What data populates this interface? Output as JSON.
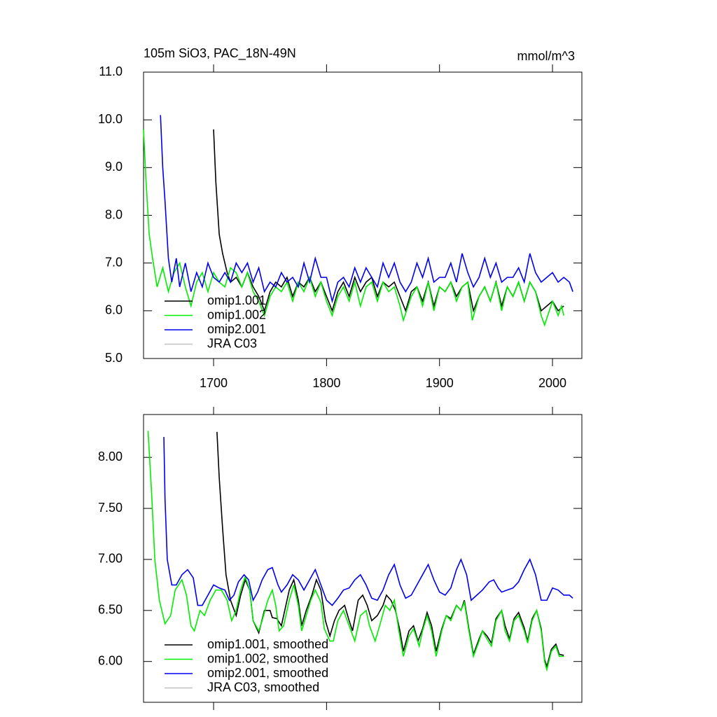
{
  "chart_data": [
    {
      "type": "line",
      "title": "105m SiO3, PAC_18N-49N",
      "units": "mmol/m^3",
      "xlim": [
        1638,
        2026
      ],
      "xticks": [
        1700,
        1800,
        1900,
        2000
      ],
      "ylim": [
        5,
        11
      ],
      "yticks": [
        {
          "value": 5,
          "label": "5.0"
        },
        {
          "value": 6,
          "label": "6.0"
        },
        {
          "value": 7,
          "label": "7.0"
        },
        {
          "value": 8,
          "label": "8.0"
        },
        {
          "value": 9,
          "label": "9.0"
        },
        {
          "value": 10,
          "label": "10.0"
        },
        {
          "value": 11,
          "label": "11.0"
        }
      ],
      "legend": "lower left",
      "series": [
        {
          "name": "omip1.001",
          "color": "#000000",
          "x": [
            1700,
            1702,
            1705,
            1708,
            1712,
            1715,
            1720,
            1725,
            1730,
            1735,
            1740,
            1745,
            1750,
            1755,
            1760,
            1765,
            1770,
            1775,
            1780,
            1785,
            1790,
            1795,
            1800,
            1805,
            1810,
            1815,
            1820,
            1825,
            1830,
            1835,
            1840,
            1845,
            1850,
            1855,
            1860,
            1865,
            1870,
            1875,
            1880,
            1885,
            1890,
            1895,
            1900,
            1905,
            1910,
            1915,
            1920,
            1925,
            1930,
            1935,
            1940,
            1945,
            1950,
            1955,
            1960,
            1965,
            1970,
            1975,
            1980,
            1985,
            1990,
            1995,
            2000,
            2005,
            2010
          ],
          "values": [
            9.8,
            8.7,
            7.6,
            7.2,
            6.8,
            6.6,
            6.7,
            6.5,
            6.8,
            6.5,
            6.3,
            6.0,
            6.4,
            6.6,
            6.5,
            6.7,
            6.3,
            6.6,
            6.5,
            6.7,
            6.4,
            6.6,
            6.3,
            6.0,
            6.4,
            6.6,
            6.3,
            6.7,
            6.4,
            6.6,
            6.7,
            6.3,
            6.6,
            6.5,
            6.6,
            6.3,
            6.0,
            6.4,
            6.5,
            6.2,
            6.6,
            6.1,
            6.5,
            6.4,
            6.6,
            6.3,
            6.5,
            6.6,
            6.0,
            6.3,
            6.5,
            6.2,
            6.6,
            6.1,
            6.5,
            6.3,
            6.6,
            6.2,
            6.6,
            6.4,
            6.0,
            6.1,
            6.2,
            6.0,
            6.1
          ]
        },
        {
          "name": "omip1.002",
          "color": "#00ee00",
          "x": [
            1638,
            1640,
            1643,
            1646,
            1650,
            1655,
            1660,
            1665,
            1670,
            1675,
            1680,
            1685,
            1690,
            1695,
            1700,
            1705,
            1710,
            1715,
            1720,
            1725,
            1730,
            1735,
            1740,
            1745,
            1750,
            1755,
            1760,
            1765,
            1770,
            1775,
            1780,
            1785,
            1790,
            1795,
            1800,
            1805,
            1810,
            1815,
            1820,
            1825,
            1830,
            1835,
            1840,
            1845,
            1850,
            1855,
            1860,
            1865,
            1868,
            1875,
            1880,
            1885,
            1890,
            1895,
            1900,
            1905,
            1910,
            1915,
            1920,
            1925,
            1929,
            1935,
            1940,
            1945,
            1950,
            1955,
            1960,
            1965,
            1970,
            1975,
            1980,
            1985,
            1990,
            1993,
            2000,
            2005,
            2008,
            2010
          ],
          "values": [
            9.8,
            8.8,
            7.6,
            7.1,
            6.5,
            6.9,
            6.4,
            6.8,
            7.0,
            6.5,
            6.1,
            6.6,
            6.8,
            6.4,
            6.8,
            6.6,
            6.5,
            6.9,
            6.8,
            6.5,
            6.8,
            6.4,
            6.2,
            5.9,
            6.3,
            6.5,
            6.4,
            6.6,
            6.2,
            6.6,
            6.4,
            6.7,
            6.3,
            6.6,
            6.2,
            5.9,
            6.3,
            6.5,
            6.2,
            6.6,
            6.1,
            6.5,
            6.6,
            6.2,
            6.6,
            6.4,
            6.5,
            6.1,
            5.8,
            6.3,
            6.5,
            6.1,
            6.6,
            6.0,
            6.5,
            6.4,
            6.6,
            6.2,
            6.5,
            6.6,
            5.8,
            6.3,
            6.5,
            6.2,
            6.6,
            6.0,
            6.5,
            6.3,
            6.6,
            6.2,
            6.6,
            6.4,
            5.9,
            5.7,
            6.2,
            5.9,
            6.1,
            5.9
          ]
        },
        {
          "name": "omip2.001",
          "color": "#0000ee",
          "x": [
            1653,
            1655,
            1657,
            1660,
            1663,
            1667,
            1670,
            1675,
            1680,
            1685,
            1690,
            1695,
            1700,
            1705,
            1710,
            1715,
            1720,
            1725,
            1730,
            1735,
            1740,
            1745,
            1750,
            1755,
            1760,
            1765,
            1770,
            1775,
            1780,
            1785,
            1790,
            1795,
            1800,
            1805,
            1810,
            1815,
            1820,
            1825,
            1830,
            1835,
            1840,
            1845,
            1850,
            1855,
            1860,
            1865,
            1870,
            1875,
            1880,
            1885,
            1890,
            1895,
            1900,
            1905,
            1910,
            1915,
            1920,
            1925,
            1930,
            1935,
            1940,
            1945,
            1950,
            1955,
            1960,
            1965,
            1970,
            1975,
            1980,
            1985,
            1990,
            1995,
            2000,
            2005,
            2010,
            2015,
            2018
          ],
          "values": [
            10.1,
            9.0,
            8.3,
            7.1,
            6.6,
            7.1,
            6.5,
            7.0,
            6.4,
            6.8,
            6.5,
            7.0,
            6.7,
            6.6,
            6.8,
            6.6,
            7.0,
            6.8,
            7.0,
            6.6,
            6.9,
            6.4,
            6.6,
            6.5,
            6.8,
            6.6,
            6.7,
            6.5,
            7.0,
            6.6,
            7.1,
            6.7,
            6.7,
            6.2,
            6.6,
            6.7,
            6.5,
            6.9,
            6.6,
            6.9,
            6.7,
            6.5,
            7.0,
            6.7,
            7.0,
            6.6,
            6.4,
            6.6,
            7.0,
            6.7,
            7.1,
            6.6,
            6.7,
            6.7,
            7.0,
            6.6,
            7.2,
            6.8,
            6.5,
            6.7,
            7.1,
            6.7,
            7.0,
            6.6,
            6.7,
            6.7,
            6.9,
            6.6,
            7.2,
            6.8,
            6.6,
            6.7,
            6.8,
            6.6,
            6.7,
            6.6,
            6.4
          ]
        },
        {
          "name": "JRA C03",
          "color": "#c0c0c0",
          "x": [],
          "values": []
        }
      ]
    },
    {
      "type": "line",
      "xlim": [
        1638,
        2026
      ],
      "ylim": [
        5.6,
        8.42
      ],
      "yticks": [
        {
          "value": 6,
          "label": "6.00"
        },
        {
          "value": 6.5,
          "label": "6.50"
        },
        {
          "value": 7,
          "label": "7.00"
        },
        {
          "value": 7.5,
          "label": "7.50"
        },
        {
          "value": 8,
          "label": "8.00"
        }
      ],
      "legend": "lower left",
      "series": [
        {
          "name": "omip1.001, smoothed",
          "color": "#000000",
          "x": [
            1703,
            1705,
            1708,
            1711,
            1715,
            1720,
            1724,
            1728,
            1732,
            1735,
            1740,
            1745,
            1750,
            1752,
            1756,
            1760,
            1763,
            1767,
            1771,
            1775,
            1778,
            1782,
            1787,
            1791,
            1795,
            1799,
            1803,
            1807,
            1811,
            1816,
            1820,
            1823,
            1828,
            1832,
            1836,
            1840,
            1845,
            1850,
            1853,
            1857,
            1861,
            1865,
            1868,
            1873,
            1877,
            1881,
            1885,
            1889,
            1893,
            1897,
            1902,
            1906,
            1910,
            1915,
            1919,
            1922,
            1926,
            1930,
            1935,
            1938,
            1942,
            1946,
            1950,
            1955,
            1958,
            1962,
            1966,
            1970,
            1975,
            1978,
            1982,
            1986,
            1990,
            1993,
            1995,
            1999,
            2003,
            2006,
            2010
          ],
          "values": [
            8.25,
            7.8,
            7.3,
            6.85,
            6.6,
            6.45,
            6.65,
            6.8,
            6.7,
            6.4,
            6.28,
            6.5,
            6.5,
            6.43,
            6.42,
            6.35,
            6.5,
            6.7,
            6.8,
            6.6,
            6.35,
            6.5,
            6.65,
            6.8,
            6.7,
            6.4,
            6.25,
            6.4,
            6.5,
            6.55,
            6.4,
            6.3,
            6.6,
            6.65,
            6.55,
            6.4,
            6.45,
            6.55,
            6.65,
            6.6,
            6.5,
            6.3,
            6.1,
            6.3,
            6.35,
            6.2,
            6.32,
            6.48,
            6.35,
            6.1,
            6.32,
            6.45,
            6.42,
            6.55,
            6.5,
            6.6,
            6.32,
            6.07,
            6.22,
            6.3,
            6.25,
            6.18,
            6.42,
            6.5,
            6.35,
            6.22,
            6.42,
            6.48,
            6.33,
            6.2,
            6.42,
            6.5,
            6.32,
            6.02,
            5.95,
            6.12,
            6.17,
            6.07,
            6.06
          ]
        },
        {
          "name": "omip1.002, smoothed",
          "color": "#00ee00",
          "x": [
            1642,
            1645,
            1648,
            1652,
            1657,
            1662,
            1666,
            1672,
            1676,
            1680,
            1683,
            1688,
            1692,
            1697,
            1702,
            1707,
            1712,
            1716,
            1720,
            1724,
            1728,
            1732,
            1735,
            1740,
            1743,
            1748,
            1752,
            1755,
            1758,
            1762,
            1767,
            1771,
            1775,
            1778,
            1782,
            1786,
            1790,
            1795,
            1798,
            1803,
            1806,
            1810,
            1815,
            1820,
            1825,
            1830,
            1835,
            1838,
            1843,
            1847,
            1852,
            1856,
            1860,
            1864,
            1868,
            1873,
            1877,
            1882,
            1885,
            1889,
            1893,
            1897,
            1902,
            1906,
            1910,
            1915,
            1919,
            1922,
            1926,
            1930,
            1935,
            1938,
            1942,
            1946,
            1950,
            1955,
            1958,
            1962,
            1966,
            1970,
            1975,
            1978,
            1982,
            1986,
            1990,
            1993,
            1995,
            1999,
            2003,
            2006,
            2010
          ],
          "values": [
            8.26,
            7.68,
            7.0,
            6.6,
            6.37,
            6.45,
            6.7,
            6.8,
            6.65,
            6.35,
            6.3,
            6.5,
            6.45,
            6.6,
            6.7,
            6.7,
            6.6,
            6.4,
            6.5,
            6.7,
            6.83,
            6.7,
            6.4,
            6.3,
            6.4,
            6.6,
            6.7,
            6.55,
            6.3,
            6.35,
            6.6,
            6.75,
            6.55,
            6.3,
            6.45,
            6.6,
            6.7,
            6.58,
            6.32,
            6.2,
            6.2,
            6.4,
            6.5,
            6.35,
            6.2,
            6.45,
            6.5,
            6.35,
            6.2,
            6.35,
            6.55,
            6.5,
            6.6,
            6.3,
            6.05,
            6.25,
            6.32,
            6.15,
            6.3,
            6.45,
            6.3,
            6.05,
            6.3,
            6.45,
            6.4,
            6.55,
            6.5,
            6.58,
            6.3,
            6.05,
            6.2,
            6.3,
            6.22,
            6.15,
            6.4,
            6.5,
            6.3,
            6.2,
            6.4,
            6.45,
            6.3,
            6.18,
            6.4,
            6.5,
            6.3,
            6.0,
            5.92,
            6.1,
            6.15,
            6.05,
            6.05
          ]
        },
        {
          "name": "omip2.001, smoothed",
          "color": "#0000ee",
          "x": [
            1656,
            1657,
            1659,
            1663,
            1667,
            1672,
            1677,
            1682,
            1686,
            1690,
            1695,
            1700,
            1705,
            1710,
            1714,
            1718,
            1722,
            1727,
            1731,
            1735,
            1739,
            1743,
            1748,
            1752,
            1757,
            1760,
            1765,
            1770,
            1775,
            1780,
            1785,
            1790,
            1795,
            1800,
            1805,
            1810,
            1815,
            1820,
            1825,
            1830,
            1835,
            1840,
            1845,
            1850,
            1855,
            1860,
            1865,
            1870,
            1875,
            1880,
            1885,
            1890,
            1895,
            1900,
            1905,
            1910,
            1915,
            1919,
            1924,
            1928,
            1933,
            1938,
            1944,
            1948,
            1952,
            1955,
            1960,
            1965,
            1970,
            1975,
            1980,
            1985,
            1990,
            1995,
            2000,
            2005,
            2010,
            2015,
            2018
          ],
          "values": [
            8.2,
            7.6,
            7.0,
            6.75,
            6.75,
            6.85,
            6.9,
            6.82,
            6.55,
            6.55,
            6.65,
            6.75,
            6.72,
            6.7,
            6.6,
            6.65,
            6.78,
            6.85,
            6.8,
            6.6,
            6.68,
            6.8,
            6.9,
            6.92,
            6.75,
            6.68,
            6.75,
            6.85,
            6.8,
            6.7,
            6.8,
            6.9,
            6.75,
            6.6,
            6.55,
            6.62,
            6.7,
            6.72,
            6.8,
            6.85,
            6.75,
            6.62,
            6.6,
            6.7,
            6.85,
            6.95,
            6.75,
            6.62,
            6.65,
            6.75,
            6.85,
            6.95,
            6.8,
            6.68,
            6.65,
            6.72,
            6.9,
            7.0,
            6.85,
            6.6,
            6.65,
            6.7,
            6.78,
            6.8,
            6.72,
            6.68,
            6.7,
            6.72,
            6.78,
            6.9,
            7.0,
            6.85,
            6.6,
            6.6,
            6.72,
            6.7,
            6.65,
            6.65,
            6.62
          ]
        },
        {
          "name": "JRA C03, smoothed",
          "color": "#c0c0c0",
          "x": [],
          "values": []
        }
      ]
    }
  ]
}
